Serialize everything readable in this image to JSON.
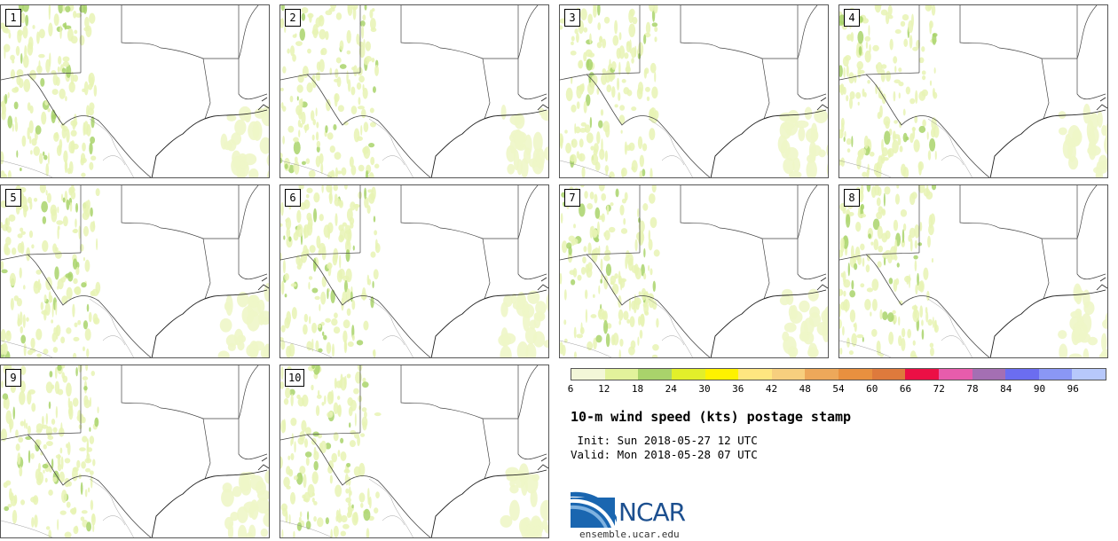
{
  "panels": [
    {
      "label": "1"
    },
    {
      "label": "2"
    },
    {
      "label": "3"
    },
    {
      "label": "4"
    },
    {
      "label": "5"
    },
    {
      "label": "6"
    },
    {
      "label": "7"
    },
    {
      "label": "8"
    },
    {
      "label": "9"
    },
    {
      "label": "10"
    }
  ],
  "legend": {
    "colors": [
      "#f3f7d8",
      "#e2f29b",
      "#a9d36b",
      "#e2ef2a",
      "#fff200",
      "#ffe680",
      "#f7cf7e",
      "#eda85a",
      "#e8903f",
      "#de7a3c",
      "#ec0f45",
      "#e75cac",
      "#a46fb3",
      "#6b6df0",
      "#8a97f5",
      "#b7c8fb"
    ],
    "ticks": [
      "6",
      "12",
      "18",
      "24",
      "30",
      "36",
      "42",
      "48",
      "54",
      "60",
      "66",
      "72",
      "78",
      "84",
      "90",
      "96"
    ]
  },
  "title": "10-m wind speed (kts) postage stamp",
  "init": " Init: Sun 2018-05-27 12 UTC",
  "valid": "Valid: Mon 2018-05-28 07 UTC",
  "logo": {
    "text": "NCAR",
    "site": "ensemble.ucar.edu"
  }
}
